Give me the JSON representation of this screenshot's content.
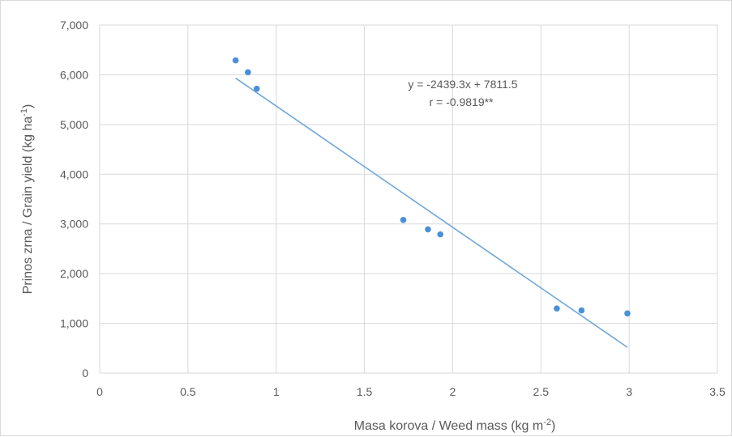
{
  "chart_data": {
    "type": "scatter",
    "xlabel": "Masa korova / Weed mass (kg m",
    "xlabel_sup": "-2",
    "xlabel_end": ")",
    "ylabel": "Prinos zrna / Grain yield (kg ha",
    "ylabel_sup": "-1",
    "ylabel_end": ")",
    "xlim": [
      0,
      3.5
    ],
    "ylim": [
      0,
      7000
    ],
    "x_ticks": [
      "0",
      "0.5",
      "1",
      "1.5",
      "2",
      "2.5",
      "3",
      "3.5"
    ],
    "y_ticks": [
      "0",
      "1,000",
      "2,000",
      "3,000",
      "4,000",
      "5,000",
      "6,000",
      "7,000"
    ],
    "grid": true,
    "point_color": "#4a90d9",
    "line_color": "#6fa8dc",
    "points": [
      {
        "x": 0.77,
        "y": 6290
      },
      {
        "x": 0.84,
        "y": 6050
      },
      {
        "x": 0.89,
        "y": 5720
      },
      {
        "x": 1.72,
        "y": 3080
      },
      {
        "x": 1.86,
        "y": 2890
      },
      {
        "x": 1.93,
        "y": 2790
      },
      {
        "x": 2.59,
        "y": 1300
      },
      {
        "x": 2.73,
        "y": 1260
      },
      {
        "x": 2.99,
        "y": 1200
      }
    ],
    "trendline": {
      "slope": -2439.3,
      "intercept": 7811.5,
      "x_start": 0.77,
      "x_end": 2.99
    },
    "equation_text": "y = -2439.3x + 7811.5",
    "r_text": "r = -0.9819**"
  }
}
